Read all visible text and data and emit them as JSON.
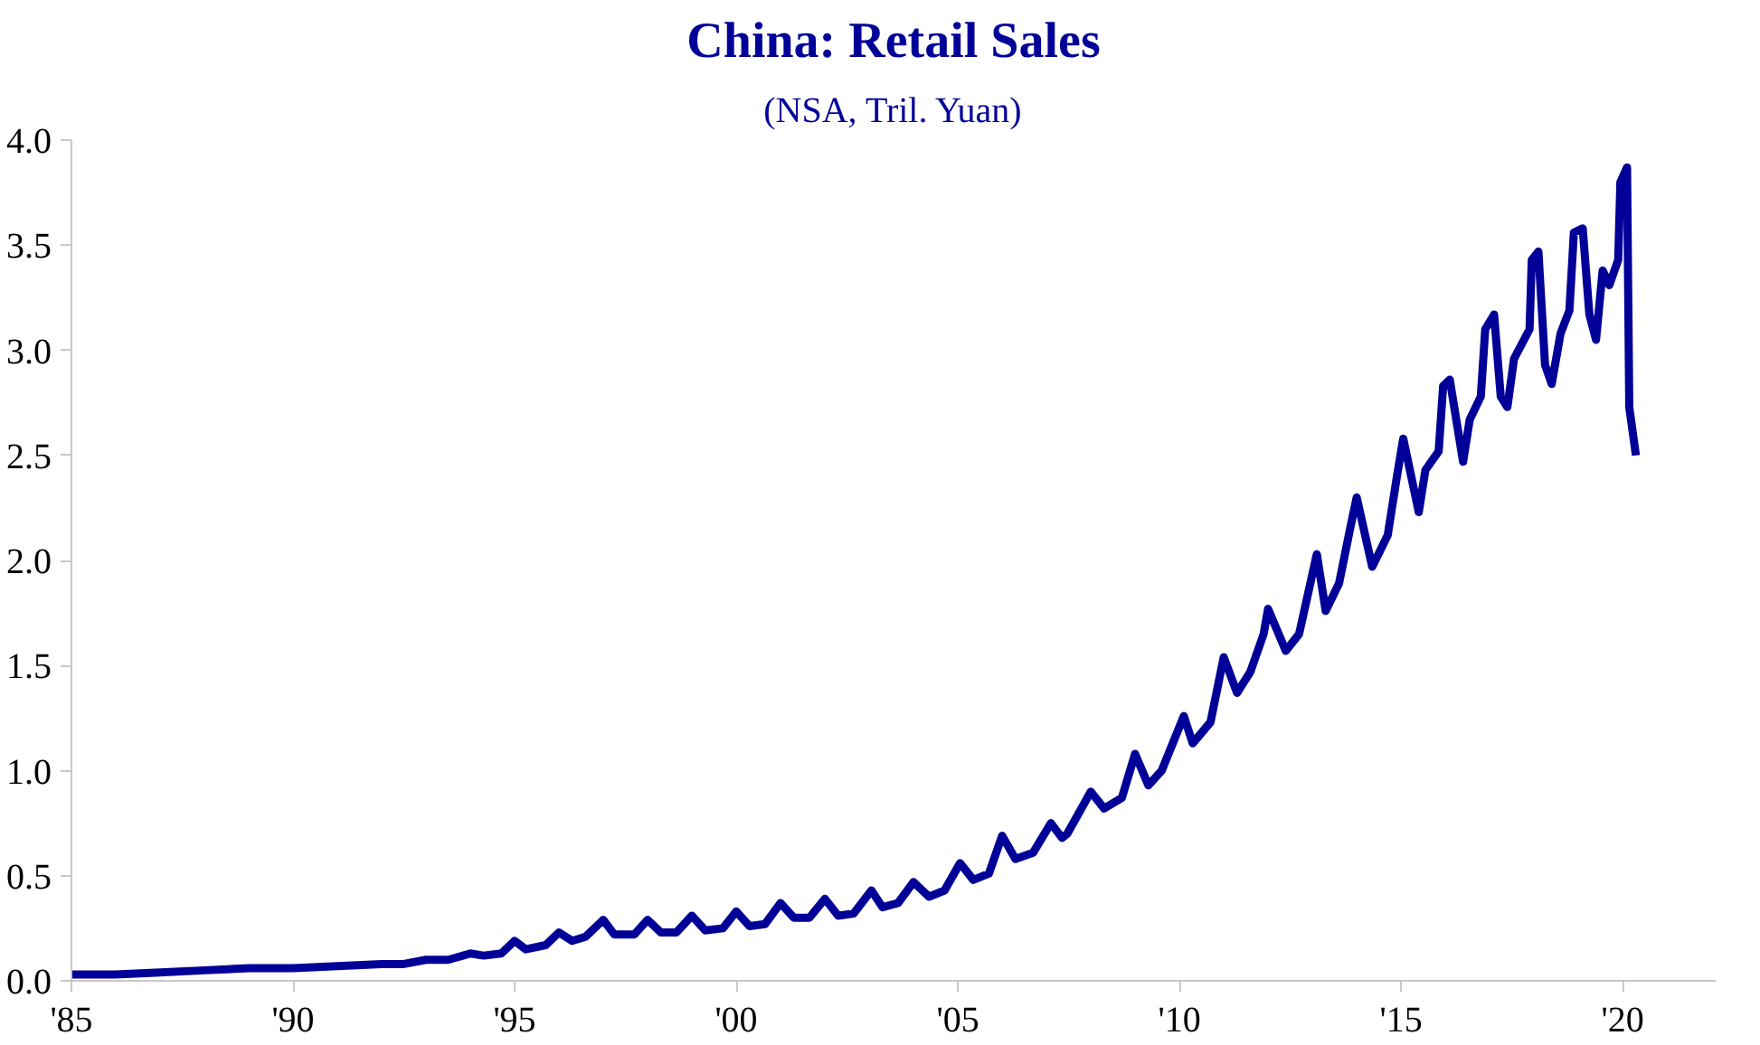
{
  "chart_data": {
    "type": "line",
    "title": "China: Retail Sales",
    "subtitle": "(NSA, Tril. Yuan)",
    "xlim": [
      1985,
      2022.1
    ],
    "ylim": [
      0,
      4.0
    ],
    "xticks": [
      {
        "value": 1985,
        "label": "'85"
      },
      {
        "value": 1990,
        "label": "'90"
      },
      {
        "value": 1995,
        "label": "'95"
      },
      {
        "value": 2000,
        "label": "'00"
      },
      {
        "value": 2005,
        "label": "'05"
      },
      {
        "value": 2010,
        "label": "'10"
      },
      {
        "value": 2015,
        "label": "'15"
      },
      {
        "value": 2020,
        "label": "'20"
      }
    ],
    "yticks": [
      {
        "value": 0,
        "label": "0.0"
      },
      {
        "value": 0.5,
        "label": "0.5"
      },
      {
        "value": 1,
        "label": "1.0"
      },
      {
        "value": 1.5,
        "label": "1.5"
      },
      {
        "value": 2,
        "label": "2.0"
      },
      {
        "value": 2.5,
        "label": "2.5"
      },
      {
        "value": 3,
        "label": "3.0"
      },
      {
        "value": 3.5,
        "label": "3.5"
      },
      {
        "value": 4,
        "label": "4.0"
      }
    ],
    "grid": false,
    "marker": "none",
    "line_style": "solid",
    "series": [
      {
        "color": "#000099",
        "x": [
          1985.0,
          1986.0,
          1987.0,
          1988.0,
          1989.0,
          1990.0,
          1991.0,
          1992.0,
          1992.5,
          1993.0,
          1993.5,
          1994.0,
          1994.3,
          1994.7,
          1995.0,
          1995.25,
          1995.7,
          1996.0,
          1996.3,
          1996.6,
          1997.0,
          1997.25,
          1997.7,
          1998.0,
          1998.3,
          1998.65,
          1999.0,
          1999.3,
          1999.7,
          2000.0,
          2000.3,
          2000.65,
          2001.0,
          2001.3,
          2001.65,
          2002.0,
          2002.3,
          2002.65,
          2003.05,
          2003.3,
          2003.65,
          2004.0,
          2004.35,
          2004.7,
          2005.05,
          2005.35,
          2005.7,
          2006.0,
          2006.3,
          2006.7,
          2007.1,
          2007.35,
          2007.47,
          2008.0,
          2008.3,
          2008.7,
          2009.0,
          2009.3,
          2009.6,
          2010.1,
          2010.3,
          2010.7,
          2011.0,
          2011.3,
          2011.6,
          2011.9,
          2012.0,
          2012.4,
          2012.7,
          2013.1,
          2013.3,
          2013.6,
          2013.85,
          2014.0,
          2014.35,
          2014.7,
          2014.9,
          2015.05,
          2015.4,
          2015.55,
          2015.85,
          2015.95,
          2016.1,
          2016.4,
          2016.55,
          2016.8,
          2016.9,
          2017.1,
          2017.25,
          2017.4,
          2017.55,
          2017.9,
          2017.95,
          2018.1,
          2018.25,
          2018.4,
          2018.6,
          2018.8,
          2018.9,
          2019.1,
          2019.25,
          2019.4,
          2019.55,
          2019.7,
          2019.9,
          2019.95,
          2020.1,
          2020.15,
          2020.3
        ],
        "values": [
          0.03,
          0.03,
          0.04,
          0.05,
          0.06,
          0.06,
          0.07,
          0.08,
          0.08,
          0.1,
          0.1,
          0.13,
          0.12,
          0.13,
          0.19,
          0.15,
          0.17,
          0.23,
          0.19,
          0.21,
          0.29,
          0.22,
          0.22,
          0.29,
          0.23,
          0.23,
          0.31,
          0.24,
          0.25,
          0.33,
          0.26,
          0.27,
          0.37,
          0.3,
          0.3,
          0.39,
          0.31,
          0.32,
          0.43,
          0.35,
          0.37,
          0.47,
          0.4,
          0.43,
          0.56,
          0.48,
          0.51,
          0.69,
          0.58,
          0.61,
          0.75,
          0.68,
          0.7,
          0.9,
          0.82,
          0.87,
          1.08,
          0.93,
          1.0,
          1.26,
          1.13,
          1.23,
          1.54,
          1.37,
          1.47,
          1.65,
          1.77,
          1.57,
          1.65,
          2.03,
          1.76,
          1.89,
          2.15,
          2.3,
          1.97,
          2.12,
          2.39,
          2.58,
          2.23,
          2.43,
          2.52,
          2.83,
          2.86,
          2.47,
          2.67,
          2.78,
          3.1,
          3.17,
          2.78,
          2.73,
          2.96,
          3.1,
          3.43,
          3.47,
          2.93,
          2.84,
          3.08,
          3.19,
          3.56,
          3.58,
          3.17,
          3.05,
          3.38,
          3.31,
          3.43,
          3.8,
          3.87,
          2.73,
          2.5
        ]
      }
    ]
  }
}
